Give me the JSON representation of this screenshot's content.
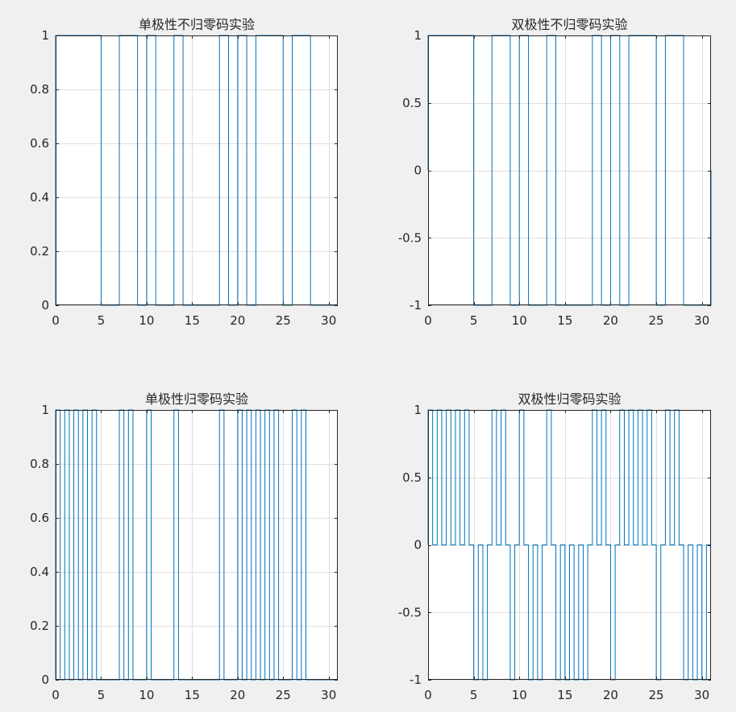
{
  "chart_data": [
    {
      "type": "line",
      "title": "单极性不归零码实验",
      "xlim": [
        0,
        31
      ],
      "ylim": [
        0,
        1
      ],
      "xticks": [
        0,
        5,
        10,
        15,
        20,
        25,
        30
      ],
      "yticks": [
        0,
        0.2,
        0.4,
        0.6,
        0.8,
        1
      ],
      "ytick_labels": [
        "0",
        "0.2",
        "0.4",
        "0.6",
        "0.8",
        "1"
      ],
      "grid": true,
      "line_color": "#0072bd",
      "x": [
        0,
        0,
        5,
        5,
        7,
        7,
        9,
        9,
        10,
        10,
        11,
        11,
        13,
        13,
        14,
        14,
        18,
        18,
        19,
        19,
        20,
        20,
        21,
        21,
        22,
        22,
        25,
        25,
        26,
        26,
        28,
        28,
        31
      ],
      "y": [
        0,
        1,
        1,
        0,
        0,
        1,
        1,
        0,
        0,
        1,
        1,
        0,
        0,
        1,
        1,
        0,
        0,
        1,
        1,
        0,
        0,
        1,
        1,
        0,
        0,
        1,
        1,
        0,
        0,
        1,
        1,
        0,
        0
      ]
    },
    {
      "type": "line",
      "title": "双极性不归零码实验",
      "xlim": [
        0,
        31
      ],
      "ylim": [
        -1,
        1
      ],
      "xticks": [
        0,
        5,
        10,
        15,
        20,
        25,
        30
      ],
      "yticks": [
        -1,
        -0.5,
        0,
        0.5,
        1
      ],
      "ytick_labels": [
        "-1",
        "-0.5",
        "0",
        "0.5",
        "1"
      ],
      "grid": true,
      "line_color": "#0072bd",
      "x": [
        0,
        0,
        5,
        5,
        7,
        7,
        9,
        9,
        10,
        10,
        11,
        11,
        13,
        13,
        14,
        14,
        18,
        18,
        19,
        19,
        20,
        20,
        21,
        21,
        22,
        22,
        25,
        25,
        26,
        26,
        28,
        28,
        31,
        31
      ],
      "y": [
        0,
        1,
        1,
        -1,
        -1,
        1,
        1,
        -1,
        -1,
        1,
        1,
        -1,
        -1,
        1,
        1,
        -1,
        -1,
        1,
        1,
        -1,
        -1,
        1,
        1,
        -1,
        -1,
        1,
        1,
        -1,
        -1,
        1,
        1,
        -1,
        -1,
        0
      ]
    },
    {
      "type": "line",
      "title": "单极性归零码实验",
      "xlim": [
        0,
        31
      ],
      "ylim": [
        0,
        1
      ],
      "xticks": [
        0,
        5,
        10,
        15,
        20,
        25,
        30
      ],
      "yticks": [
        0,
        0.2,
        0.4,
        0.6,
        0.8,
        1
      ],
      "ytick_labels": [
        "0",
        "0.2",
        "0.4",
        "0.6",
        "0.8",
        "1"
      ],
      "grid": true,
      "line_color": "#0072bd",
      "x": [
        0,
        0,
        0.5,
        0.5,
        1,
        1,
        1.5,
        1.5,
        2,
        2,
        2.5,
        2.5,
        3,
        3,
        3.5,
        3.5,
        4,
        4,
        4.5,
        4.5,
        7,
        7,
        7.5,
        7.5,
        8,
        8,
        8.5,
        8.5,
        10,
        10,
        10.5,
        10.5,
        13,
        13,
        13.5,
        13.5,
        18,
        18,
        18.5,
        18.5,
        20,
        20,
        20.5,
        20.5,
        21,
        21,
        21.5,
        21.5,
        22,
        22,
        22.5,
        22.5,
        23,
        23,
        23.5,
        23.5,
        24,
        24,
        24.5,
        24.5,
        26,
        26,
        26.5,
        26.5,
        27,
        27,
        27.5,
        27.5,
        31
      ],
      "y": [
        0,
        1,
        1,
        0,
        0,
        1,
        1,
        0,
        0,
        1,
        1,
        0,
        0,
        1,
        1,
        0,
        0,
        1,
        1,
        0,
        0,
        1,
        1,
        0,
        0,
        1,
        1,
        0,
        0,
        1,
        1,
        0,
        0,
        1,
        1,
        0,
        0,
        1,
        1,
        0,
        0,
        1,
        1,
        0,
        0,
        1,
        1,
        0,
        0,
        1,
        1,
        0,
        0,
        1,
        1,
        0,
        0,
        1,
        1,
        0,
        0,
        1,
        1,
        0,
        0,
        1,
        1,
        0,
        0
      ]
    },
    {
      "type": "line",
      "title": "双极性归零码实验",
      "xlim": [
        0,
        31
      ],
      "ylim": [
        -1,
        1
      ],
      "xticks": [
        0,
        5,
        10,
        15,
        20,
        25,
        30
      ],
      "yticks": [
        -1,
        -0.5,
        0,
        0.5,
        1
      ],
      "ytick_labels": [
        "-1",
        "-0.5",
        "0",
        "0.5",
        "1"
      ],
      "grid": true,
      "line_color": "#0072bd",
      "bit_values": [
        1,
        1,
        1,
        1,
        1,
        -1,
        -1,
        1,
        1,
        -1,
        1,
        -1,
        -1,
        1,
        -1,
        -1,
        -1,
        -1,
        1,
        1,
        -1,
        1,
        1,
        1,
        1,
        -1,
        1,
        1,
        -1,
        -1,
        -1
      ]
    }
  ]
}
